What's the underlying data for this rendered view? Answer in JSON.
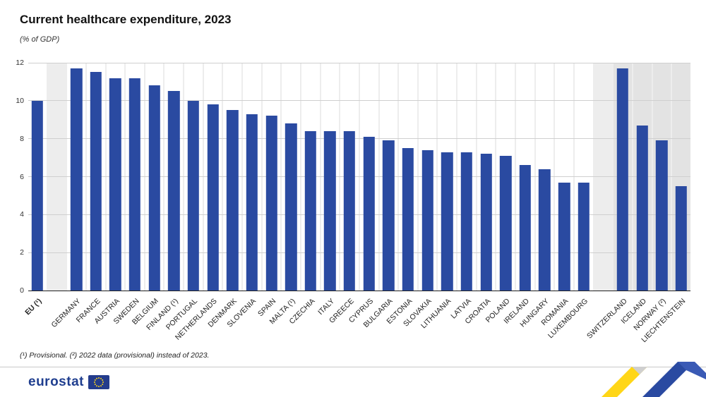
{
  "header": {
    "title": "Current healthcare expenditure, 2023",
    "subtitle": "(% of GDP)"
  },
  "footnote": "(¹) Provisional. (²) 2022 data (provisional) instead of 2023.",
  "logo": {
    "text": "eurostat"
  },
  "colors": {
    "bar": "#2a4aa1",
    "efta_background": "#e3e3e3",
    "ribbon_yellow": "#ffd617",
    "ribbon_blue": "#2a4aa1",
    "flag_blue": "#243c8c",
    "flag_star_yellow": "#ffd617"
  },
  "chart_data": {
    "type": "bar",
    "title": "Current healthcare expenditure, 2023",
    "subtitle": "(% of GDP)",
    "ylabel": "% of GDP",
    "xlabel": "",
    "ylim": [
      0,
      12
    ],
    "yticks": [
      0,
      2,
      4,
      6,
      8,
      10,
      12
    ],
    "grid": true,
    "legend": "none",
    "groups": [
      {
        "name": "eu-aggregate",
        "shaded": false,
        "items": [
          {
            "label": "EU (¹)",
            "value": 10.0,
            "bold": true
          }
        ]
      },
      {
        "name": "eu-members",
        "shaded": false,
        "items": [
          {
            "label": "Germany",
            "value": 11.7
          },
          {
            "label": "France",
            "value": 11.5
          },
          {
            "label": "Austria",
            "value": 11.2
          },
          {
            "label": "Sweden",
            "value": 11.2
          },
          {
            "label": "Belgium",
            "value": 10.8
          },
          {
            "label": "Finland (¹)",
            "value": 10.5
          },
          {
            "label": "Portugal",
            "value": 10.0
          },
          {
            "label": "Netherlands",
            "value": 9.8
          },
          {
            "label": "Denmark",
            "value": 9.5
          },
          {
            "label": "Slovenia",
            "value": 9.3
          },
          {
            "label": "Spain",
            "value": 9.2
          },
          {
            "label": "Malta (¹)",
            "value": 8.8
          },
          {
            "label": "Czechia",
            "value": 8.4
          },
          {
            "label": "Italy",
            "value": 8.4
          },
          {
            "label": "Greece",
            "value": 8.4
          },
          {
            "label": "Cyprus",
            "value": 8.1
          },
          {
            "label": "Bulgaria",
            "value": 7.9
          },
          {
            "label": "Estonia",
            "value": 7.5
          },
          {
            "label": "Slovakia",
            "value": 7.4
          },
          {
            "label": "Lithuania",
            "value": 7.3
          },
          {
            "label": "Latvia",
            "value": 7.3
          },
          {
            "label": "Croatia",
            "value": 7.2
          },
          {
            "label": "Poland",
            "value": 7.1
          },
          {
            "label": "Ireland",
            "value": 6.6
          },
          {
            "label": "Hungary",
            "value": 6.4
          },
          {
            "label": "Romania",
            "value": 5.7
          },
          {
            "label": "Luxembourg",
            "value": 5.7
          }
        ]
      },
      {
        "name": "efta",
        "shaded": true,
        "items": [
          {
            "label": "Switzerland",
            "value": 11.7
          },
          {
            "label": "Iceland",
            "value": 8.7
          },
          {
            "label": "Norway (²)",
            "value": 7.9
          },
          {
            "label": "Liechtenstein",
            "value": 5.5
          }
        ]
      }
    ]
  }
}
